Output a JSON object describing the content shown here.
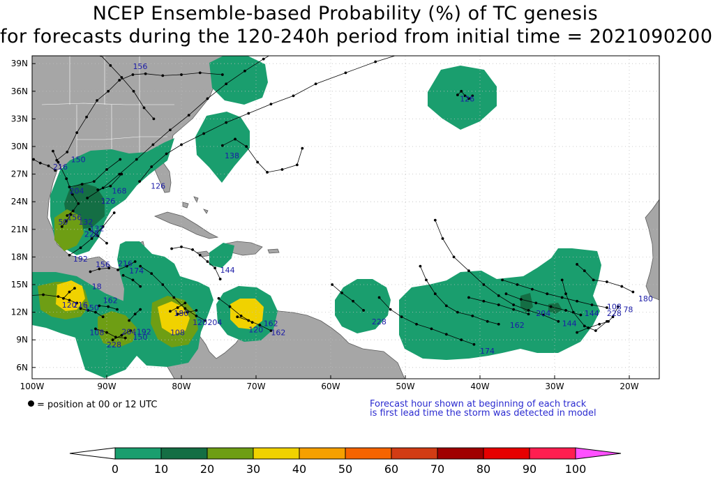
{
  "title": {
    "line1": "NCEP Ensemble-based Probability (%) of TC genesis",
    "line2": "for forecasts during the 120-240h period from initial time = 2021090200"
  },
  "map": {
    "lon_labels": [
      "100W",
      "90W",
      "80W",
      "70W",
      "60W",
      "50W",
      "40W",
      "30W",
      "20W"
    ],
    "lat_labels": [
      "39N",
      "36N",
      "33N",
      "30N",
      "27N",
      "24N",
      "21N",
      "18N",
      "15N",
      "12N",
      "9N",
      "6N"
    ],
    "colors": {
      "ocean": "#ffffff",
      "land": "#a6a6a6",
      "coast": "#5a5a5a",
      "grid": "#bdbdbd"
    }
  },
  "tracks": [
    {
      "label": "156",
      "points": [
        [
          -90.8,
          39.9
        ],
        [
          -89.5,
          38.8
        ],
        [
          -88.0,
          37.5
        ],
        [
          -86.4,
          36.0
        ],
        [
          -85.0,
          34.2
        ],
        [
          -83.7,
          33.0
        ]
      ]
    },
    {
      "label": "150",
      "points": [
        [
          -96.7,
          28.5
        ],
        [
          -95.3,
          29.4
        ],
        [
          -94.0,
          31.5
        ],
        [
          -92.7,
          33.2
        ],
        [
          -91.3,
          35.0
        ],
        [
          -89.8,
          36.0
        ],
        [
          -88.3,
          37.2
        ],
        [
          -86.5,
          37.8
        ],
        [
          -84.8,
          37.9
        ],
        [
          -82.5,
          37.7
        ],
        [
          -80.0,
          37.8
        ],
        [
          -77.5,
          38.0
        ],
        [
          -74.5,
          37.8
        ]
      ]
    },
    {
      "label": "216",
      "points": [
        [
          -99.8,
          28.6
        ],
        [
          -98.9,
          28.2
        ],
        [
          -97.8,
          27.9
        ],
        [
          -96.9,
          27.4
        ]
      ]
    },
    {
      "label": "204",
      "points": [
        [
          -95.0,
          25.6
        ],
        [
          -93.3,
          25.9
        ],
        [
          -91.7,
          26.2
        ],
        [
          -90.0,
          27.5
        ],
        [
          -88.2,
          28.6
        ]
      ]
    },
    {
      "label": "168",
      "points": [
        [
          -91.2,
          25.3
        ],
        [
          -89.5,
          25.7
        ],
        [
          -88.0,
          27.0
        ]
      ]
    },
    {
      "label": "126",
      "points": [
        [
          -92.6,
          24.4
        ],
        [
          -90.5,
          25.5
        ],
        [
          -88.3,
          27.0
        ],
        [
          -86.0,
          28.6
        ],
        [
          -83.8,
          30.2
        ],
        [
          -81.5,
          31.8
        ],
        [
          -79.0,
          33.4
        ],
        [
          -76.5,
          35.2
        ],
        [
          -74.0,
          36.8
        ],
        [
          -71.5,
          38.2
        ],
        [
          -69.0,
          39.5
        ],
        [
          -66.5,
          40.7
        ]
      ]
    },
    {
      "label": "126",
      "points": [
        [
          -85.6,
          26.2
        ],
        [
          -84.0,
          27.8
        ],
        [
          -82.0,
          29.2
        ],
        [
          -80.0,
          30.2
        ],
        [
          -77.0,
          31.4
        ],
        [
          -74.0,
          32.6
        ],
        [
          -71.0,
          33.6
        ],
        [
          -68.0,
          34.6
        ],
        [
          -65.0,
          35.5
        ],
        [
          -62.0,
          36.8
        ],
        [
          -58.0,
          38.0
        ],
        [
          -54.0,
          39.2
        ],
        [
          -50.0,
          40.2
        ]
      ]
    },
    {
      "label": "138",
      "points": [
        [
          -74.5,
          30.1
        ],
        [
          -72.8,
          30.8
        ],
        [
          -71.3,
          30.0
        ],
        [
          -69.8,
          28.3
        ],
        [
          -68.5,
          27.2
        ],
        [
          -66.5,
          27.5
        ],
        [
          -64.5,
          28.0
        ],
        [
          -63.8,
          29.8
        ]
      ]
    },
    {
      "label": "126",
      "points": [
        [
          -43.0,
          35.6
        ],
        [
          -42.5,
          36.0
        ],
        [
          -42.0,
          35.5
        ],
        [
          -41.5,
          35.2
        ],
        [
          -41.0,
          35.5
        ]
      ]
    },
    {
      "label": "132",
      "points": [
        [
          -95.3,
          22.5
        ],
        [
          -94.5,
          23.0
        ],
        [
          -93.8,
          23.8
        ],
        [
          -94.6,
          24.8
        ],
        [
          -95.4,
          26.5
        ],
        [
          -96.5,
          28.3
        ],
        [
          -97.2,
          29.5
        ]
      ]
    },
    {
      "label": "180",
      "points": [
        [
          -96.0,
          21.3
        ],
        [
          -95.4,
          21.9
        ],
        [
          -94.8,
          22.6
        ]
      ]
    },
    {
      "label": "228",
      "points": [
        [
          -92.3,
          21.0
        ],
        [
          -91.2,
          20.3
        ],
        [
          -90.0,
          19.5
        ]
      ]
    },
    {
      "label": "192",
      "points": [
        [
          -95.0,
          18.2
        ],
        [
          -93.5,
          19.0
        ],
        [
          -92.0,
          20.0
        ],
        [
          -90.5,
          21.3
        ],
        [
          -89.0,
          22.8
        ]
      ]
    },
    {
      "label": "156",
      "points": [
        [
          -92.2,
          16.4
        ],
        [
          -91.0,
          16.7
        ],
        [
          -89.7,
          16.8
        ]
      ]
    },
    {
      "label": "216",
      "points": [
        [
          -88.5,
          16.6
        ],
        [
          -87.3,
          17.0
        ],
        [
          -86.2,
          17.5
        ]
      ]
    },
    {
      "label": "174",
      "points": [
        [
          -87.8,
          16.0
        ],
        [
          -86.5,
          15.5
        ],
        [
          -85.5,
          14.8
        ]
      ]
    },
    {
      "label": "144",
      "points": [
        [
          -74.8,
          15.6
        ],
        [
          -75.5,
          16.8
        ],
        [
          -76.5,
          17.5
        ],
        [
          -77.5,
          18.2
        ],
        [
          -78.5,
          18.8
        ],
        [
          -80.0,
          19.1
        ],
        [
          -81.3,
          18.9
        ]
      ]
    },
    {
      "label": "120",
      "points": [
        [
          -100.5,
          13.8
        ],
        [
          -98.5,
          13.9
        ],
        [
          -96.5,
          13.7
        ],
        [
          -95.0,
          13.3
        ],
        [
          -94.0,
          13.0
        ]
      ]
    },
    {
      "label": "216",
      "points": [
        [
          -95.8,
          13.5
        ],
        [
          -95.0,
          14.2
        ],
        [
          -94.3,
          14.6
        ]
      ]
    },
    {
      "label": "150",
      "points": [
        [
          -93.5,
          12.4
        ],
        [
          -92.5,
          12.2
        ],
        [
          -91.5,
          12.0
        ],
        [
          -90.5,
          11.5
        ]
      ]
    },
    {
      "label": "162",
      "points": [
        [
          -91.0,
          12.7
        ],
        [
          -89.8,
          12.6
        ],
        [
          -88.6,
          12.3
        ]
      ]
    },
    {
      "label": "108",
      "points": [
        [
          -91.5,
          10.2
        ],
        [
          -90.0,
          9.8
        ],
        [
          -88.8,
          9.3
        ],
        [
          -87.5,
          9.2
        ]
      ]
    },
    {
      "label": "228",
      "points": [
        [
          -89.2,
          9.0
        ],
        [
          -88.0,
          9.5
        ],
        [
          -86.8,
          10.0
        ]
      ]
    },
    {
      "label": "144",
      "points": [
        [
          -87.0,
          11.1
        ],
        [
          -86.2,
          11.8
        ],
        [
          -85.5,
          12.3
        ]
      ]
    },
    {
      "label": "180",
      "points": [
        [
          -81.5,
          12.1
        ],
        [
          -80.5,
          12.5
        ],
        [
          -79.5,
          13.0
        ]
      ]
    },
    {
      "label": "192",
      "points": [
        [
          -80.5,
          11.8
        ],
        [
          -79.2,
          12.0
        ],
        [
          -78.0,
          12.2
        ]
      ]
    },
    {
      "label": "204",
      "points": [
        [
          -76.8,
          11.1
        ],
        [
          -78.0,
          11.6
        ],
        [
          -79.5,
          12.4
        ],
        [
          -81.0,
          13.6
        ],
        [
          -82.5,
          15.0
        ],
        [
          -84.0,
          16.2
        ],
        [
          -85.5,
          17.0
        ]
      ]
    },
    {
      "label": "120",
      "points": [
        [
          -70.5,
          10.9
        ],
        [
          -72.0,
          11.6
        ],
        [
          -73.5,
          12.6
        ],
        [
          -75.0,
          13.5
        ]
      ]
    },
    {
      "label": "162",
      "points": [
        [
          -68.0,
          10.0
        ],
        [
          -69.5,
          10.6
        ],
        [
          -71.0,
          11.1
        ],
        [
          -72.5,
          11.5
        ]
      ]
    },
    {
      "label": "228",
      "points": [
        [
          -55.6,
          12.2
        ],
        [
          -57.0,
          13.2
        ],
        [
          -58.5,
          14.1
        ],
        [
          -59.8,
          15.0
        ]
      ]
    },
    {
      "label": "174",
      "points": [
        [
          -40.8,
          8.5
        ],
        [
          -42.5,
          9.0
        ],
        [
          -44.5,
          9.6
        ],
        [
          -46.5,
          10.2
        ],
        [
          -48.5,
          10.7
        ],
        [
          -50.5,
          11.5
        ],
        [
          -52.0,
          12.3
        ],
        [
          -53.5,
          13.6
        ]
      ]
    },
    {
      "label": "162",
      "points": [
        [
          -37.5,
          10.7
        ],
        [
          -39.0,
          11.0
        ],
        [
          -41.0,
          11.6
        ],
        [
          -43.0,
          12.0
        ],
        [
          -44.5,
          12.7
        ],
        [
          -46.0,
          14.0
        ],
        [
          -47.2,
          15.5
        ],
        [
          -48.0,
          17.0
        ]
      ]
    },
    {
      "label": "204",
      "points": [
        [
          -33.5,
          11.8
        ],
        [
          -35.5,
          12.3
        ],
        [
          -37.5,
          12.8
        ],
        [
          -39.5,
          13.2
        ],
        [
          -41.5,
          13.6
        ]
      ]
    },
    {
      "label": "144",
      "points": [
        [
          -29.5,
          11.0
        ],
        [
          -31.5,
          11.7
        ],
        [
          -33.5,
          12.2
        ],
        [
          -35.5,
          12.8
        ],
        [
          -37.5,
          13.8
        ],
        [
          -39.5,
          15.0
        ],
        [
          -41.5,
          16.5
        ],
        [
          -43.5,
          18.0
        ],
        [
          -45.0,
          20.0
        ],
        [
          -46.0,
          22.0
        ]
      ]
    },
    {
      "label": "144",
      "points": [
        [
          -26.5,
          11.7
        ],
        [
          -28.5,
          12.2
        ],
        [
          -30.5,
          12.6
        ],
        [
          -32.5,
          13.0
        ],
        [
          -34.5,
          13.4
        ],
        [
          -36.5,
          14.0
        ]
      ]
    },
    {
      "label": "108",
      "points": [
        [
          -23.0,
          12.5
        ],
        [
          -25.0,
          12.8
        ],
        [
          -27.0,
          13.2
        ],
        [
          -29.0,
          13.6
        ],
        [
          -31.0,
          14.0
        ],
        [
          -33.0,
          14.5
        ],
        [
          -35.0,
          15.0
        ],
        [
          -37.0,
          15.5
        ]
      ]
    },
    {
      "label": "228",
      "points": [
        [
          -23.0,
          11.0
        ],
        [
          -24.5,
          10.0
        ],
        [
          -26.0,
          10.5
        ],
        [
          -27.5,
          12.0
        ],
        [
          -28.5,
          14.0
        ],
        [
          -29.0,
          15.5
        ]
      ]
    },
    {
      "label": "78",
      "points": [
        [
          -21.5,
          12.6
        ],
        [
          -22.2,
          11.5
        ],
        [
          -22.8,
          11.0
        ],
        [
          -24.0,
          10.7
        ],
        [
          -25.5,
          10.3
        ],
        [
          -27.0,
          9.8
        ]
      ]
    },
    {
      "label": "180",
      "points": [
        [
          -19.5,
          14.2
        ],
        [
          -21.0,
          14.8
        ],
        [
          -23.0,
          15.3
        ],
        [
          -24.8,
          15.5
        ],
        [
          -26.0,
          16.5
        ],
        [
          -27.0,
          17.2
        ]
      ]
    }
  ],
  "track_labels": [
    {
      "text": "156",
      "lon": -86.5,
      "lat": 38.4
    },
    {
      "text": "126",
      "lon": -42.7,
      "lat": 34.9
    },
    {
      "text": "150",
      "lon": -94.8,
      "lat": 28.3
    },
    {
      "text": "216",
      "lon": -97.2,
      "lat": 27.5
    },
    {
      "text": "138",
      "lon": -74.2,
      "lat": 28.7
    },
    {
      "text": "204",
      "lon": -95.0,
      "lat": 24.9
    },
    {
      "text": "168",
      "lon": -89.3,
      "lat": 24.9
    },
    {
      "text": "126",
      "lon": -84.1,
      "lat": 25.4
    },
    {
      "text": "126",
      "lon": -90.8,
      "lat": 23.8
    },
    {
      "text": "156",
      "lon": -95.3,
      "lat": 22.0
    },
    {
      "text": "50",
      "lon": -96.5,
      "lat": 21.5
    },
    {
      "text": "132",
      "lon": -93.8,
      "lat": 21.5
    },
    {
      "text": "132",
      "lon": -92.3,
      "lat": 20.8
    },
    {
      "text": "228",
      "lon": -93.0,
      "lat": 20.2
    },
    {
      "text": "192",
      "lon": -94.5,
      "lat": 17.5
    },
    {
      "text": "156",
      "lon": -91.5,
      "lat": 16.9
    },
    {
      "text": "216",
      "lon": -88.5,
      "lat": 17.0
    },
    {
      "text": "174",
      "lon": -87.0,
      "lat": 16.2
    },
    {
      "text": "144",
      "lon": -74.8,
      "lat": 16.3
    },
    {
      "text": "18",
      "lon": -92.0,
      "lat": 14.5
    },
    {
      "text": "120",
      "lon": -96.0,
      "lat": 12.5
    },
    {
      "text": "216",
      "lon": -94.5,
      "lat": 12.5
    },
    {
      "text": "162",
      "lon": -90.5,
      "lat": 13.0
    },
    {
      "text": "150",
      "lon": -93.0,
      "lat": 12.2
    },
    {
      "text": "108",
      "lon": -92.3,
      "lat": 9.5
    },
    {
      "text": "228",
      "lon": -90.0,
      "lat": 8.2
    },
    {
      "text": "150",
      "lon": -86.5,
      "lat": 9.0
    },
    {
      "text": "204",
      "lon": -88.0,
      "lat": 9.6
    },
    {
      "text": "192",
      "lon": -86.0,
      "lat": 9.6
    },
    {
      "text": "180",
      "lon": -81.0,
      "lat": 11.6
    },
    {
      "text": "204",
      "lon": -76.5,
      "lat": 10.6
    },
    {
      "text": "120",
      "lon": -78.5,
      "lat": 10.6
    },
    {
      "text": "108",
      "lon": -81.5,
      "lat": 9.5
    },
    {
      "text": "162",
      "lon": -69.0,
      "lat": 10.5
    },
    {
      "text": "120",
      "lon": -71.0,
      "lat": 9.8
    },
    {
      "text": "162",
      "lon": -68.0,
      "lat": 9.5
    },
    {
      "text": "228",
      "lon": -54.5,
      "lat": 10.7
    },
    {
      "text": "174",
      "lon": -40.0,
      "lat": 7.5
    },
    {
      "text": "162",
      "lon": -36.0,
      "lat": 10.3
    },
    {
      "text": "204",
      "lon": -32.5,
      "lat": 11.6
    },
    {
      "text": "144",
      "lon": -29.0,
      "lat": 10.5
    },
    {
      "text": "144",
      "lon": -26.0,
      "lat": 11.6
    },
    {
      "text": "108",
      "lon": -23.0,
      "lat": 12.3
    },
    {
      "text": "228",
      "lon": -23.0,
      "lat": 11.6
    },
    {
      "text": "78",
      "lon": -20.8,
      "lat": 12.0
    },
    {
      "text": "180",
      "lon": -18.8,
      "lat": 13.2
    }
  ],
  "legend": {
    "dot_text": "= position at 00 or 12 UTC",
    "note_line1": "Forecast hour shown at beginning of each track",
    "note_line2": "is first lead time the storm was detected in model"
  },
  "colorbar": {
    "labels": [
      "0",
      "10",
      "20",
      "30",
      "40",
      "50",
      "60",
      "70",
      "80",
      "90",
      "100"
    ],
    "colors": [
      "#1a9e6e",
      "#146e44",
      "#6e9e14",
      "#f0d200",
      "#f6a000",
      "#f66400",
      "#d23c14",
      "#a00000",
      "#e60000",
      "#ff1e50",
      "#ff50ff"
    ]
  }
}
